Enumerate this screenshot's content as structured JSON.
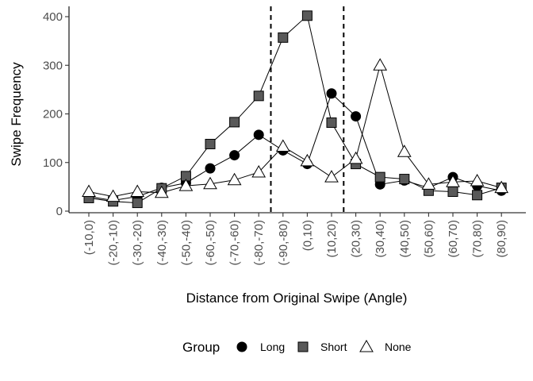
{
  "chart_data": {
    "type": "line",
    "title": "",
    "xlabel": "Distance from Original Swipe (Angle)",
    "ylabel": "Swipe Frequency",
    "ylim": [
      0,
      410
    ],
    "yticks": [
      0,
      100,
      200,
      300,
      400
    ],
    "grid": false,
    "legend_position": "bottom",
    "legend_title": "Group",
    "categories": [
      "(-10,0)",
      "(-20,-10)",
      "(-30,-20)",
      "(-40,-30)",
      "(-50,-40)",
      "(-60,-50)",
      "(-70,-60)",
      "(-80,-70)",
      "(-90,-80)",
      "(0,10)",
      "(10,20)",
      "(20,30)",
      "(30,40)",
      "(40,50)",
      "(50,60)",
      "(60,70)",
      "(70,80)",
      "(80,90)"
    ],
    "vlines_between": [
      [
        7,
        8
      ],
      [
        10,
        11
      ]
    ],
    "series": [
      {
        "name": "Long",
        "marker": "circle",
        "fill": "#000000",
        "values": [
          30,
          22,
          30,
          48,
          58,
          88,
          115,
          157,
          125,
          97,
          242,
          195,
          55,
          63,
          48,
          70,
          52,
          42
        ]
      },
      {
        "name": "Short",
        "marker": "square",
        "fill": "#595959",
        "values": [
          27,
          20,
          17,
          47,
          72,
          138,
          183,
          237,
          357,
          402,
          182,
          97,
          70,
          66,
          42,
          40,
          33,
          48
        ]
      },
      {
        "name": "None",
        "marker": "triangle",
        "fill": "#ffffff",
        "values": [
          40,
          30,
          40,
          38,
          52,
          56,
          64,
          80,
          133,
          103,
          70,
          108,
          300,
          122,
          55,
          60,
          62,
          48
        ]
      }
    ]
  }
}
